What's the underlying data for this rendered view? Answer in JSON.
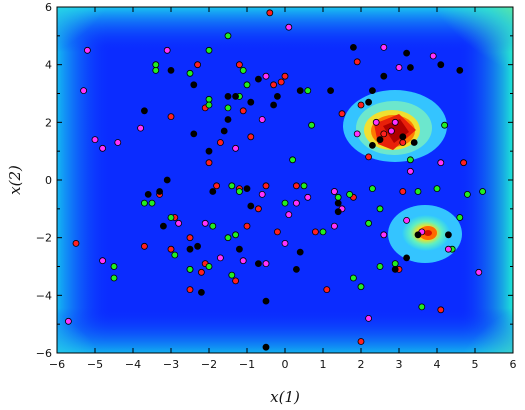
{
  "chart_data": {
    "type": "scatter",
    "title": "",
    "xlabel": "x(1)",
    "ylabel": "x(2)",
    "xlim": [
      -6,
      6
    ],
    "ylim": [
      -6,
      6
    ],
    "x_ticks": [
      -6,
      -5,
      -4,
      -3,
      -2,
      -1,
      0,
      1,
      2,
      3,
      4,
      5,
      6
    ],
    "y_ticks": [
      -6,
      -4,
      -2,
      0,
      2,
      4,
      6
    ],
    "grid": false,
    "background": "heatmap (blue low, red high); bright rim at corners, high-value hot spots near (3.1, 1.5) and (3.6, -1.8)",
    "colors": {
      "black": "#000000",
      "red": "#ff2020",
      "green": "#22ee22",
      "magenta": "#ff33ff"
    },
    "series": [
      {
        "color": "red",
        "points": [
          [
            -0.4,
            5.8
          ],
          [
            -0.3,
            3.3
          ],
          [
            0.0,
            3.6
          ],
          [
            -1.2,
            4.0
          ],
          [
            -2.3,
            4.0
          ],
          [
            -3.0,
            2.2
          ],
          [
            -2.1,
            2.5
          ],
          [
            -1.1,
            2.4
          ],
          [
            -0.9,
            1.5
          ],
          [
            -1.7,
            1.3
          ],
          [
            -2.0,
            0.6
          ],
          [
            -1.8,
            -0.2
          ],
          [
            -1.2,
            -0.3
          ],
          [
            -3.3,
            -0.5
          ],
          [
            -2.9,
            -1.3
          ],
          [
            -2.5,
            -2.0
          ],
          [
            -2.1,
            -2.9
          ],
          [
            -2.5,
            -3.1
          ],
          [
            -2.2,
            -3.2
          ],
          [
            -2.5,
            -3.8
          ],
          [
            -3.0,
            -2.4
          ],
          [
            -3.7,
            -2.3
          ],
          [
            -5.5,
            -2.2
          ],
          [
            -1.3,
            -3.5
          ],
          [
            -1.0,
            -1.6
          ],
          [
            -0.7,
            -1.0
          ],
          [
            -0.5,
            -0.2
          ],
          [
            0.3,
            -0.2
          ],
          [
            -0.2,
            -1.8
          ],
          [
            0.8,
            -1.8
          ],
          [
            1.8,
            -0.6
          ],
          [
            1.1,
            -3.8
          ],
          [
            2.0,
            -5.6
          ],
          [
            2.0,
            2.6
          ],
          [
            1.9,
            4.1
          ],
          [
            1.5,
            2.3
          ],
          [
            2.2,
            0.8
          ],
          [
            3.1,
            -0.4
          ],
          [
            3.0,
            -3.1
          ],
          [
            4.7,
            0.6
          ],
          [
            4.1,
            -4.5
          ],
          [
            3.1,
            1.3
          ],
          [
            2.6,
            1.6
          ],
          [
            -0.1,
            3.4
          ]
        ]
      },
      {
        "color": "green",
        "points": [
          [
            -1.5,
            5.0
          ],
          [
            -2.0,
            4.5
          ],
          [
            -2.5,
            3.7
          ],
          [
            -3.4,
            3.8
          ],
          [
            -3.4,
            4.0
          ],
          [
            -1.1,
            3.8
          ],
          [
            -1.0,
            3.3
          ],
          [
            -1.2,
            2.9
          ],
          [
            -2.0,
            2.8
          ],
          [
            -1.5,
            2.5
          ],
          [
            -2.0,
            2.6
          ],
          [
            -1.4,
            -0.2
          ],
          [
            -1.2,
            -0.4
          ],
          [
            -3.7,
            -0.8
          ],
          [
            -3.5,
            -0.8
          ],
          [
            -3.0,
            -1.3
          ],
          [
            -1.9,
            -1.6
          ],
          [
            -1.5,
            -2.0
          ],
          [
            -1.3,
            -1.9
          ],
          [
            -1.4,
            -3.3
          ],
          [
            -2.0,
            -3.0
          ],
          [
            -2.5,
            -3.1
          ],
          [
            -4.5,
            -3.0
          ],
          [
            -4.5,
            -3.4
          ],
          [
            -2.9,
            -2.6
          ],
          [
            0.2,
            0.7
          ],
          [
            0.5,
            -0.2
          ],
          [
            0.7,
            1.9
          ],
          [
            0.6,
            3.1
          ],
          [
            0.0,
            -0.8
          ],
          [
            1.0,
            -1.8
          ],
          [
            1.4,
            -0.6
          ],
          [
            1.7,
            -0.5
          ],
          [
            1.8,
            -3.4
          ],
          [
            2.0,
            -3.7
          ],
          [
            2.2,
            -1.5
          ],
          [
            2.3,
            -0.3
          ],
          [
            2.5,
            -1.0
          ],
          [
            3.5,
            -0.4
          ],
          [
            4.0,
            -0.3
          ],
          [
            4.8,
            -0.5
          ],
          [
            5.2,
            -0.4
          ],
          [
            4.6,
            -1.3
          ],
          [
            4.2,
            1.9
          ],
          [
            3.3,
            0.7
          ],
          [
            2.5,
            -3.0
          ],
          [
            2.9,
            -2.9
          ],
          [
            3.6,
            -4.4
          ],
          [
            4.4,
            -2.4
          ],
          [
            1.3,
            -0.4
          ]
        ]
      },
      {
        "color": "magenta",
        "points": [
          [
            -5.2,
            4.5
          ],
          [
            -3.1,
            4.5
          ],
          [
            -5.3,
            3.1
          ],
          [
            -5.0,
            1.4
          ],
          [
            -4.8,
            1.1
          ],
          [
            -4.4,
            1.3
          ],
          [
            -3.8,
            1.8
          ],
          [
            -4.8,
            -2.8
          ],
          [
            -5.7,
            -4.9
          ],
          [
            -2.8,
            -1.5
          ],
          [
            -2.1,
            -1.5
          ],
          [
            -1.7,
            -2.7
          ],
          [
            -1.1,
            -2.8
          ],
          [
            -0.5,
            -2.9
          ],
          [
            0.6,
            -0.6
          ],
          [
            0.3,
            -0.8
          ],
          [
            0.1,
            -1.2
          ],
          [
            0.0,
            -2.2
          ],
          [
            -0.6,
            -0.5
          ],
          [
            -0.5,
            3.6
          ],
          [
            -0.6,
            2.1
          ],
          [
            -1.3,
            1.1
          ],
          [
            0.1,
            5.3
          ],
          [
            1.3,
            -0.4
          ],
          [
            2.2,
            -4.8
          ],
          [
            3.0,
            3.9
          ],
          [
            3.9,
            4.3
          ],
          [
            2.6,
            4.6
          ],
          [
            2.4,
            2.0
          ],
          [
            2.8,
            1.7
          ],
          [
            1.9,
            1.6
          ],
          [
            3.3,
            0.3
          ],
          [
            4.1,
            0.6
          ],
          [
            2.9,
            2.0
          ],
          [
            3.6,
            -1.8
          ],
          [
            2.6,
            -1.9
          ],
          [
            3.2,
            -1.4
          ],
          [
            4.3,
            -2.4
          ],
          [
            5.1,
            -3.2
          ],
          [
            1.5,
            -1.0
          ],
          [
            1.3,
            -1.6
          ]
        ]
      },
      {
        "color": "black",
        "points": [
          [
            -0.3,
            2.6
          ],
          [
            -0.9,
            2.7
          ],
          [
            -0.2,
            2.9
          ],
          [
            -1.5,
            2.1
          ],
          [
            -2.4,
            1.6
          ],
          [
            -3.7,
            2.4
          ],
          [
            -2.0,
            1.0
          ],
          [
            -1.6,
            1.7
          ],
          [
            -1.3,
            2.9
          ],
          [
            -0.7,
            3.5
          ],
          [
            -1.5,
            2.9
          ],
          [
            -2.4,
            3.3
          ],
          [
            -3.0,
            3.8
          ],
          [
            -1.9,
            -0.4
          ],
          [
            -1.0,
            -0.3
          ],
          [
            -0.9,
            -0.9
          ],
          [
            -3.3,
            -0.4
          ],
          [
            -3.1,
            0.0
          ],
          [
            -3.6,
            -0.5
          ],
          [
            -2.5,
            -2.4
          ],
          [
            -2.3,
            -2.3
          ],
          [
            -1.2,
            -2.4
          ],
          [
            -0.7,
            -2.9
          ],
          [
            -0.5,
            -4.2
          ],
          [
            -0.5,
            -5.8
          ],
          [
            -2.2,
            -3.9
          ],
          [
            -3.2,
            -1.6
          ],
          [
            0.4,
            -2.5
          ],
          [
            0.3,
            -3.1
          ],
          [
            0.4,
            3.1
          ],
          [
            1.2,
            3.1
          ],
          [
            1.4,
            -0.8
          ],
          [
            1.4,
            -1.1
          ],
          [
            1.8,
            4.6
          ],
          [
            2.3,
            3.1
          ],
          [
            2.2,
            2.7
          ],
          [
            3.2,
            4.4
          ],
          [
            3.3,
            3.9
          ],
          [
            4.1,
            4.0
          ],
          [
            4.6,
            3.8
          ],
          [
            2.3,
            1.2
          ],
          [
            2.5,
            1.4
          ],
          [
            3.1,
            1.5
          ],
          [
            3.4,
            1.3
          ],
          [
            3.5,
            -1.9
          ],
          [
            4.3,
            -1.9
          ],
          [
            3.2,
            -2.7
          ],
          [
            2.9,
            -3.1
          ],
          [
            2.6,
            3.6
          ]
        ]
      }
    ]
  }
}
